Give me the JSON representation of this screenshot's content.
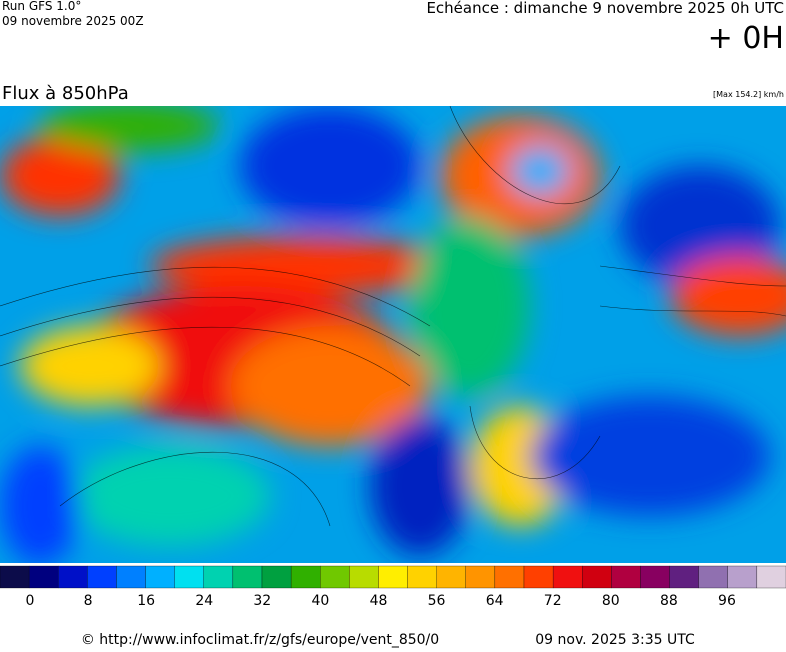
{
  "header": {
    "run": "Run GFS 1.0°",
    "run_date": "09 novembre 2025 00Z",
    "valid": "Echéance : dimanche 9 novembre 2025 0h UTC",
    "lead": "+ 0H",
    "field": "Flux à 850hPa",
    "max": "[Max 154.2] km/h"
  },
  "colorbar": {
    "colors": [
      "#0c0c4a",
      "#00007f",
      "#0010c8",
      "#0040ff",
      "#0080ff",
      "#00b0ff",
      "#00e0f0",
      "#00d2b0",
      "#00c070",
      "#00a040",
      "#30b000",
      "#70c800",
      "#b8dc00",
      "#ffee00",
      "#ffd200",
      "#ffb400",
      "#ff9400",
      "#ff7000",
      "#ff4000",
      "#f01010",
      "#d00010",
      "#b00040",
      "#880060",
      "#602080",
      "#9070b0",
      "#b8a0cc",
      "#e0d0e0"
    ],
    "ticks": [
      0,
      8,
      16,
      24,
      32,
      40,
      48,
      56,
      64,
      72,
      80,
      88,
      96
    ]
  },
  "footer": {
    "source": "© http://www.infoclimat.fr/z/gfs/europe/vent_850/0",
    "generated": "09 nov. 2025  3:35 UTC"
  }
}
